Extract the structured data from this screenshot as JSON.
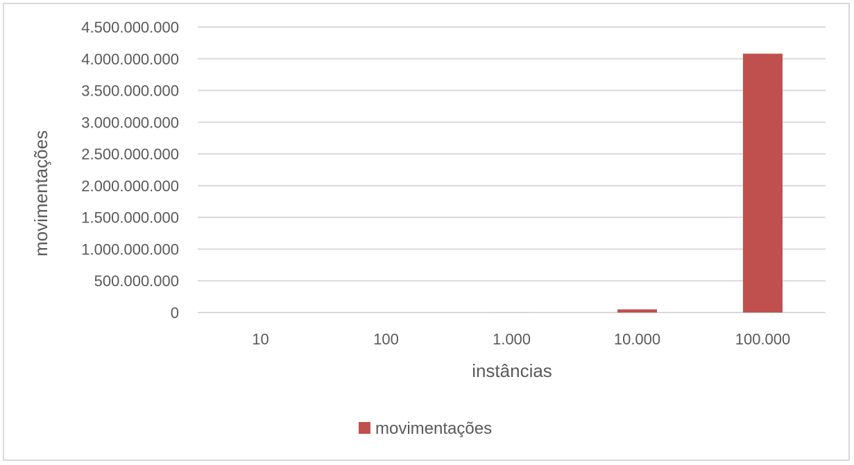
{
  "chart_data": {
    "type": "bar",
    "categories": [
      "10",
      "100",
      "1.000",
      "10.000",
      "100.000"
    ],
    "series": [
      {
        "name": "movimentações",
        "values": [
          49,
          4950,
          499500,
          49995000,
          4080000000
        ]
      }
    ],
    "xlabel": "instâncias",
    "ylabel": "movimentações",
    "ylim": [
      0,
      4500000000
    ],
    "yticks": [
      0,
      500000000,
      1000000000,
      1500000000,
      2000000000,
      2500000000,
      3000000000,
      3500000000,
      4000000000,
      4500000000
    ],
    "ytick_labels": [
      "0",
      "500.000.000",
      "1.000.000.000",
      "1.500.000.000",
      "2.000.000.000",
      "2.500.000.000",
      "3.000.000.000",
      "3.500.000.000",
      "4.000.000.000",
      "4.500.000.000"
    ],
    "grid": true,
    "legend_position": "bottom",
    "colors": {
      "bar": "#c0504d",
      "grid": "#d9d9d9",
      "text": "#595959"
    }
  }
}
